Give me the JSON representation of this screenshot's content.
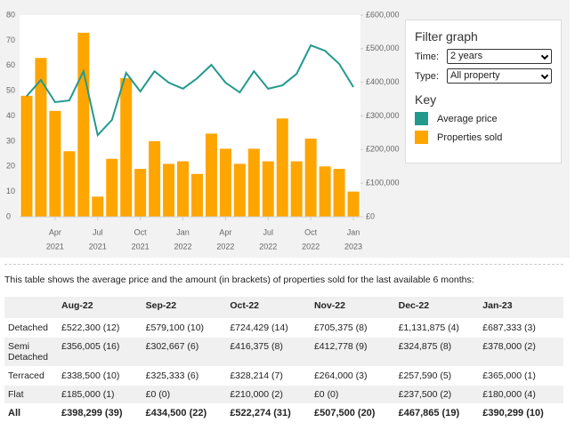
{
  "chart_data": {
    "type": "bar-line",
    "categories": [
      null,
      null,
      {
        "month": "Apr",
        "year": "2021"
      },
      null,
      null,
      {
        "month": "Jul",
        "year": "2021"
      },
      null,
      null,
      {
        "month": "Oct",
        "year": "2021"
      },
      null,
      null,
      {
        "month": "Jan",
        "year": "2022"
      },
      null,
      null,
      {
        "month": "Apr",
        "year": "2022"
      },
      null,
      null,
      {
        "month": "Jul",
        "year": "2022"
      },
      null,
      null,
      {
        "month": "Oct",
        "year": "2022"
      },
      null,
      null,
      {
        "month": "Jan",
        "year": "2023"
      }
    ],
    "series": [
      {
        "name": "Properties sold",
        "type": "bar",
        "color": "#ffa500",
        "values": [
          48,
          63,
          42,
          26,
          73,
          8,
          23,
          55,
          19,
          30,
          21,
          22,
          17,
          33,
          27,
          21,
          27,
          22,
          39,
          22,
          31,
          20,
          19,
          10
        ]
      },
      {
        "name": "Average price",
        "type": "line",
        "axis": "y2",
        "color": "#23998e",
        "values": [
          359000,
          407000,
          341000,
          346000,
          433000,
          243000,
          288000,
          428000,
          373000,
          433000,
          399000,
          381000,
          412000,
          452000,
          399000,
          370000,
          433000,
          381000,
          391000,
          425000,
          510000,
          494000,
          455000,
          386000
        ]
      }
    ],
    "ylim": [
      0,
      80
    ],
    "yticks": [
      0,
      10,
      20,
      30,
      40,
      50,
      60,
      70,
      80
    ],
    "y2lim": [
      0,
      600000
    ],
    "y2ticks": [
      {
        "value": 0,
        "label": "£0"
      },
      {
        "value": 100000,
        "label": "£100,000"
      },
      {
        "value": 200000,
        "label": "£200,000"
      },
      {
        "value": 300000,
        "label": "£300,000"
      },
      {
        "value": 400000,
        "label": "£400,000"
      },
      {
        "value": 500000,
        "label": "£500,000"
      },
      {
        "value": 600000,
        "label": "£600,000"
      }
    ]
  },
  "filter": {
    "title": "Filter graph",
    "time_label": "Time:",
    "time_value": "2 years",
    "type_label": "Type:",
    "type_value": "All property",
    "key_title": "Key"
  },
  "table": {
    "intro": "This table shows the average price and the amount (in brackets) of properties sold for the last available 6 months:",
    "headers": [
      "Aug-22",
      "Sep-22",
      "Oct-22",
      "Nov-22",
      "Dec-22",
      "Jan-23"
    ],
    "rows": [
      [
        "Detached",
        "£522,300 (12)",
        "£579,100 (10)",
        "£724,429 (14)",
        "£705,375 (8)",
        "£1,131,875 (4)",
        "£687,333 (3)"
      ],
      [
        "Semi Detached",
        "£356,005 (16)",
        "£302,667 (6)",
        "£416,375 (8)",
        "£412,778 (9)",
        "£324,875 (8)",
        "£378,000 (2)"
      ],
      [
        "Terraced",
        "£338,500 (10)",
        "£325,333 (6)",
        "£328,214 (7)",
        "£264,000 (3)",
        "£257,590 (5)",
        "£365,000 (1)"
      ],
      [
        "Flat",
        "£185,000 (1)",
        "£0 (0)",
        "£210,000 (2)",
        "£0 (0)",
        "£237,500 (2)",
        "£180,000 (4)"
      ],
      [
        "All",
        "£398,299 (39)",
        "£434,500 (22)",
        "£522,274 (31)",
        "£507,500 (20)",
        "£467,865 (19)",
        "£390,299 (10)"
      ]
    ]
  }
}
